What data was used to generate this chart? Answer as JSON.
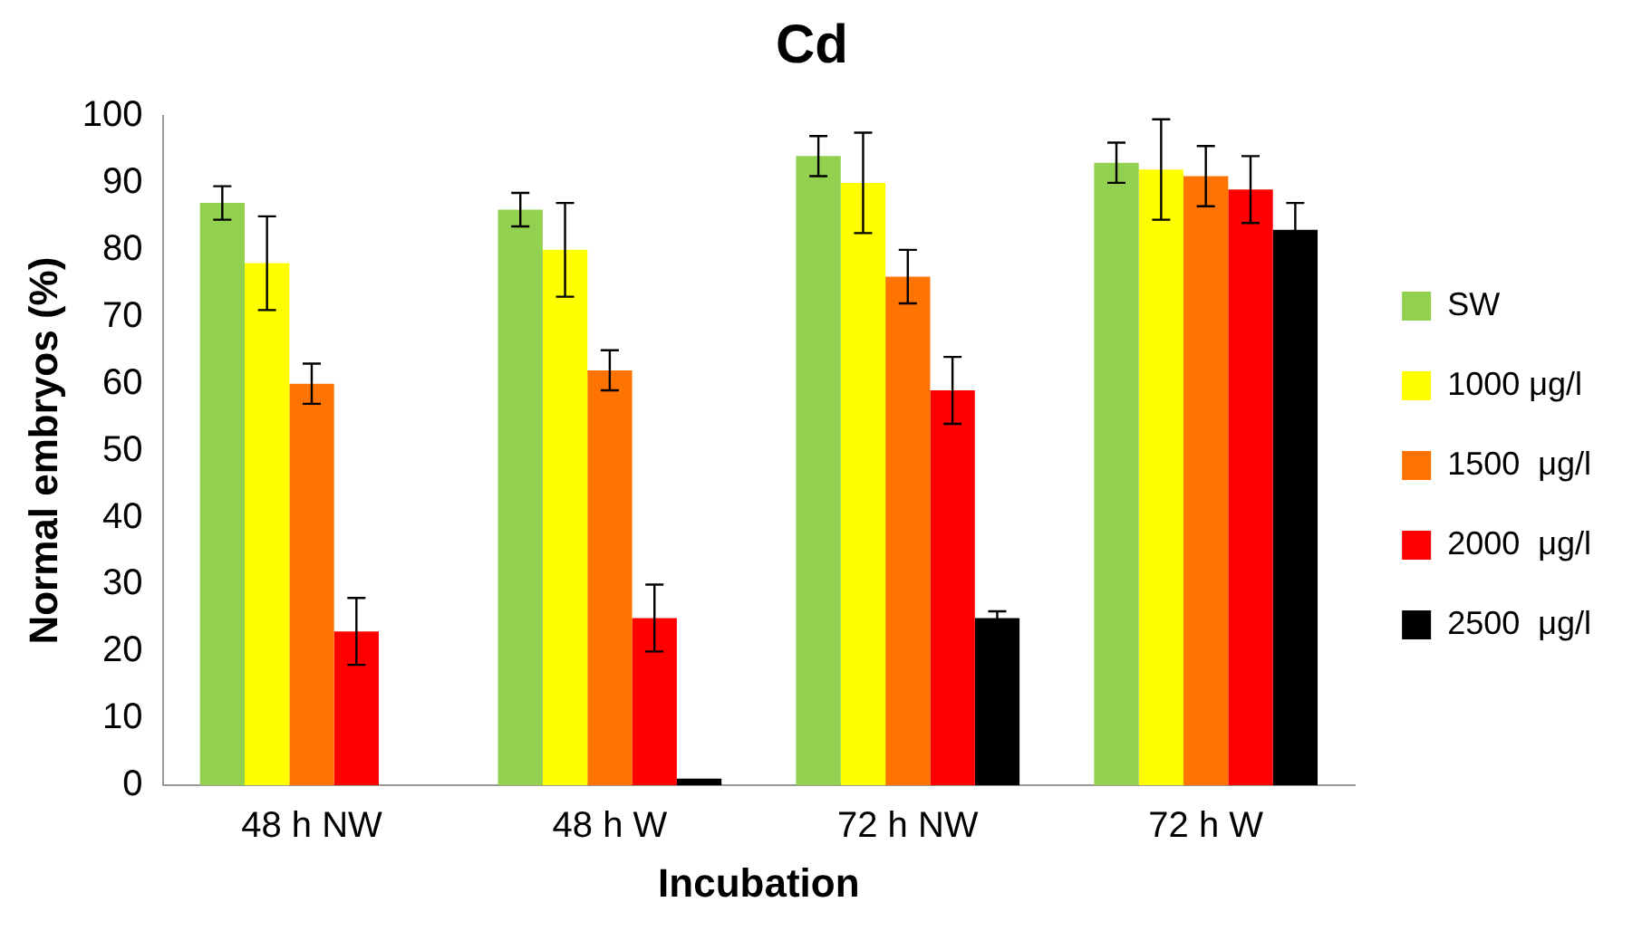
{
  "chart_data": {
    "type": "bar",
    "title": "Cd",
    "xlabel": "Incubation",
    "ylabel": "Normal embryos (%)",
    "categories": [
      "48 h NW",
      "48 h W",
      "72 h NW",
      "72 h W"
    ],
    "series": [
      {
        "name": "SW",
        "color": "#92d050",
        "values": [
          87,
          86,
          94,
          93
        ],
        "errors": [
          2.5,
          2.5,
          3,
          3
        ]
      },
      {
        "name": "1000 μg/l",
        "color": "#ffff00",
        "values": [
          78,
          80,
          90,
          92
        ],
        "errors": [
          7,
          7,
          7.5,
          7.5
        ]
      },
      {
        "name": "1500  μg/l",
        "color": "#ff7300",
        "values": [
          60,
          62,
          76,
          91
        ],
        "errors": [
          3,
          3,
          4,
          4.5
        ]
      },
      {
        "name": "2000  μg/l",
        "color": "#ff0000",
        "values": [
          23,
          25,
          59,
          89
        ],
        "errors": [
          5,
          5,
          5,
          5
        ]
      },
      {
        "name": "2500  μg/l",
        "color": "#000000",
        "values": [
          null,
          1,
          25,
          83
        ],
        "errors": [
          null,
          null,
          1,
          4
        ]
      }
    ],
    "ylim": [
      0,
      100
    ],
    "yticks": [
      0,
      10,
      20,
      30,
      40,
      50,
      60,
      70,
      80,
      90,
      100
    ],
    "grid": false,
    "legend": "right"
  }
}
